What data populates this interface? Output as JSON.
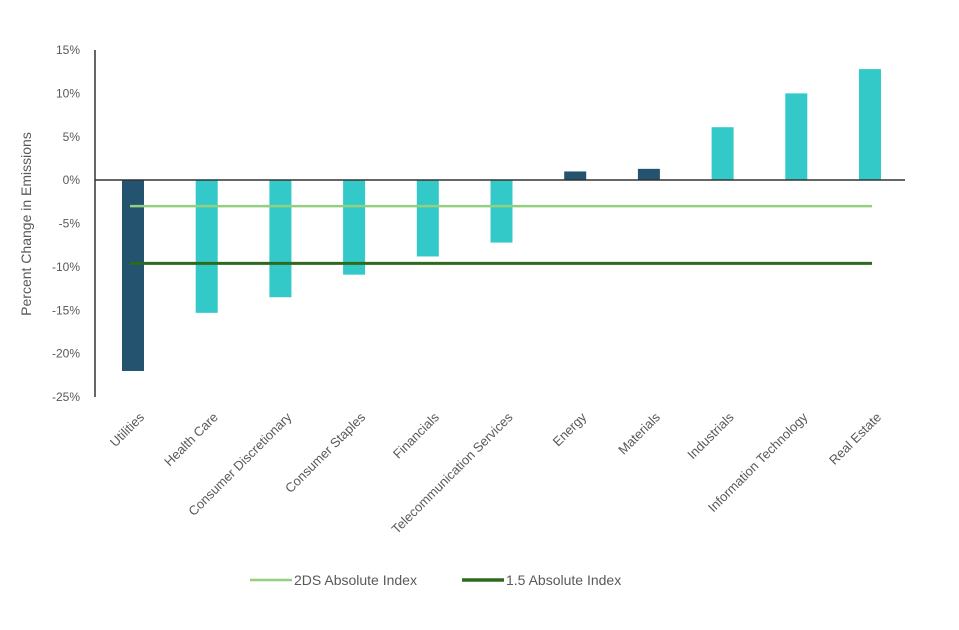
{
  "chart_data": {
    "type": "bar",
    "title": "",
    "xlabel": "",
    "ylabel": "Percent Change in Emissions",
    "ylim": [
      -25,
      15
    ],
    "yticks": [
      15,
      10,
      5,
      0,
      -5,
      -10,
      -15,
      -20,
      -25
    ],
    "ytick_labels": [
      "15%",
      "10%",
      "5%",
      "0%",
      "-5%",
      "-10%",
      "-15%",
      "-20%",
      "-25%"
    ],
    "grid": false,
    "categories": [
      "Utilities",
      "Health Care",
      "Consumer Discretionary",
      "Consumer Staples",
      "Financials",
      "Telecommunication Services",
      "Energy",
      "Materials",
      "Industrials",
      "Information Technology",
      "Real Estate"
    ],
    "values": [
      -22.0,
      -15.3,
      -13.5,
      -10.9,
      -8.8,
      -7.2,
      1.0,
      1.3,
      6.1,
      10.0,
      12.8
    ],
    "bar_colors": [
      "#24536f",
      "#33c9c9",
      "#33c9c9",
      "#33c9c9",
      "#33c9c9",
      "#33c9c9",
      "#24536f",
      "#24536f",
      "#33c9c9",
      "#33c9c9",
      "#33c9c9"
    ],
    "reference_lines": [
      {
        "name": "2DS Absolute Index",
        "value": -3.0,
        "color": "#93cf7e"
      },
      {
        "name": "1.5 Absolute Index",
        "value": -9.6,
        "color": "#2e6a1e"
      }
    ],
    "legend_position": "bottom"
  }
}
